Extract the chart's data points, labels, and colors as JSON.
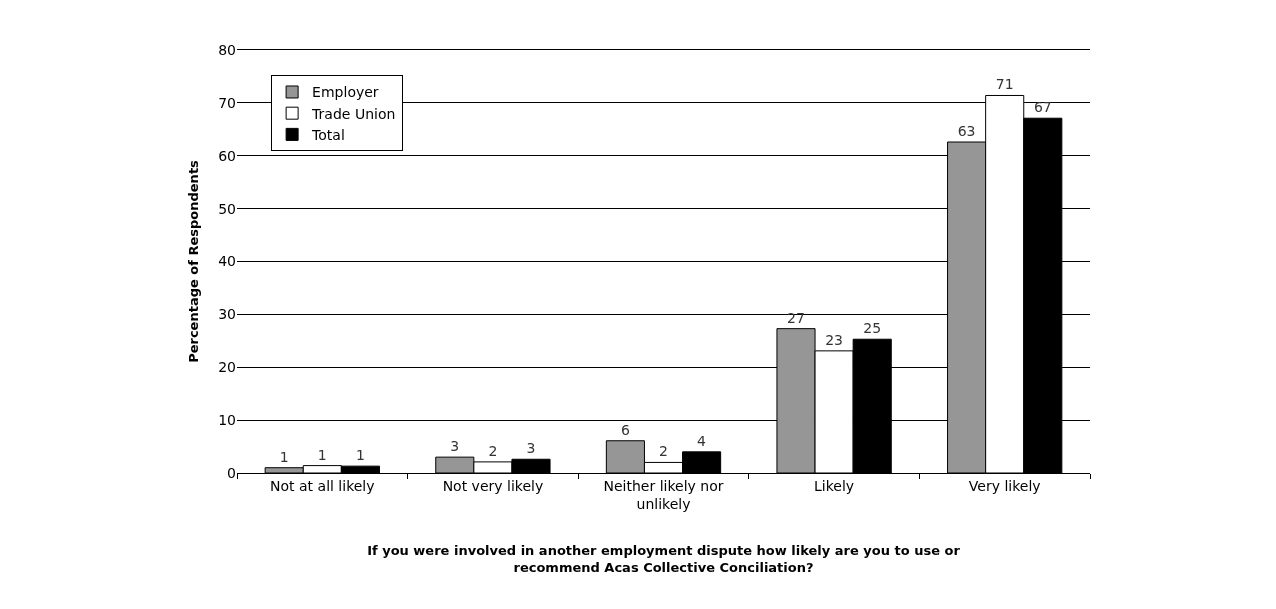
{
  "chart_data": {
    "type": "bar",
    "xlabel": "If you were involved in another employment dispute how likely are you to use or recommend Acas Collective Conciliation?",
    "ylabel": "Percentage of Respondents",
    "categories": [
      "Not at all likely",
      "Not very likely",
      "Neither likely nor unlikely",
      "Likely",
      "Very likely"
    ],
    "series": [
      {
        "name": "Employer",
        "color": "#969696",
        "values": [
          1.0,
          3.0,
          6.1,
          27.3,
          62.6
        ],
        "value_labels": [
          "1",
          "3",
          "6",
          "27",
          "63"
        ]
      },
      {
        "name": "Trade Union",
        "color": "#ffffff",
        "values": [
          1.4,
          2.1,
          2.0,
          23.1,
          71.4
        ],
        "value_labels": [
          "1",
          "2",
          "2",
          "23",
          "71"
        ]
      },
      {
        "name": "Total",
        "color": "#000000",
        "values": [
          1.3,
          2.6,
          4.0,
          25.3,
          67.1
        ],
        "value_labels": [
          "1",
          "3",
          "4",
          "25",
          "67"
        ]
      }
    ],
    "ylim": [
      0,
      80
    ],
    "yticks": [
      0,
      10,
      20,
      30,
      40,
      50,
      60,
      70,
      80
    ],
    "grid": "y",
    "legend": "top left"
  }
}
